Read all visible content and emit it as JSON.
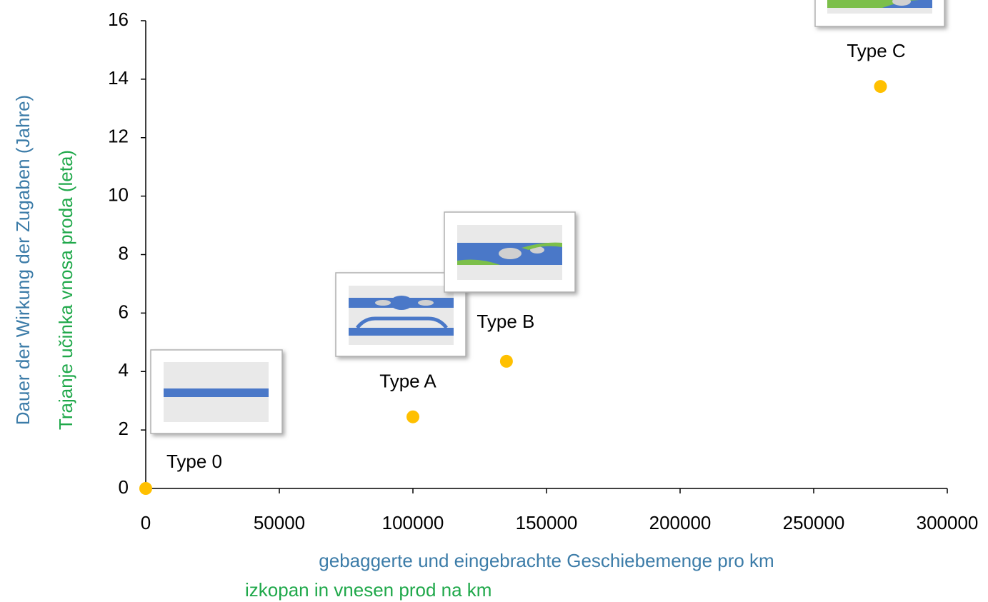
{
  "chart_data": {
    "type": "scatter",
    "x_label": "gebaggerte und eingebrachte Geschiebemenge pro km",
    "x_label_2": "izkopan in vnesen prod na km",
    "y_label": "Dauer der Wirkung der Zugaben (Jahre)",
    "y_label_2": "Trajanje učinka vnosa proda (leta)",
    "x": [
      0,
      100000,
      135000,
      275000
    ],
    "values": [
      0,
      2.45,
      4.35,
      13.75
    ],
    "point_labels": [
      "Type 0",
      "Type A",
      "Type B",
      "Type C"
    ],
    "color": "#ffc000",
    "xlim": [
      0,
      300000
    ],
    "xticks": [
      0,
      50000,
      100000,
      150000,
      200000,
      250000,
      300000
    ],
    "ylim": [
      0,
      16
    ],
    "yticks": [
      0,
      2,
      4,
      6,
      8,
      10,
      12,
      14,
      16
    ],
    "grid": false
  }
}
